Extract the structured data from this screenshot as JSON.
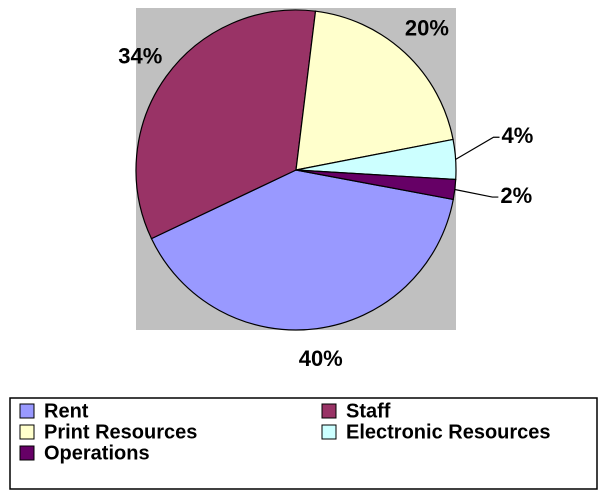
{
  "chart_data": {
    "type": "pie",
    "categories": [
      "Rent",
      "Staff",
      "Print Resources",
      "Electronic Resources",
      "Operations"
    ],
    "values": [
      40,
      34,
      20,
      4,
      2
    ],
    "value_labels": [
      "40%",
      "34%",
      "20%",
      "4%",
      "2%"
    ],
    "colors": [
      "#9999ff",
      "#993366",
      "#ffffcc",
      "#ccffff",
      "#660066"
    ],
    "legend": "bottom"
  }
}
